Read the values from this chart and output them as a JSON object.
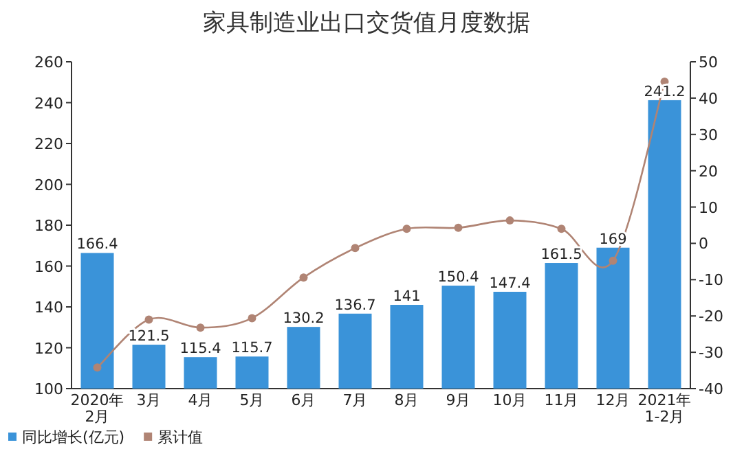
{
  "chart_data": {
    "type": "bar",
    "title": "家具制造业出口交货值月度数据",
    "categories": [
      "2020年\n2月",
      "3月",
      "4月",
      "5月",
      "6月",
      "7月",
      "8月",
      "9月",
      "10月",
      "11月",
      "12月",
      "2021年\n1-2月"
    ],
    "series": [
      {
        "name": "同比增长(亿元)",
        "color": "#3a93d9",
        "values": [
          166.4,
          121.5,
          115.4,
          115.7,
          130.2,
          136.7,
          141,
          150.4,
          147.4,
          161.5,
          169,
          241.2
        ],
        "value_labels": [
          "166.4",
          "121.5",
          "115.4",
          "115.7",
          "130.2",
          "136.7",
          "141",
          "150.4",
          "147.4",
          "161.5",
          "169",
          "241.2"
        ]
      },
      {
        "name": "累计值",
        "type": "line",
        "axis": "y2",
        "color": "#b08474",
        "marker": "circle",
        "line_style": "solid",
        "values": [
          -34.2,
          -21,
          -23.2,
          -20.6,
          -9.4,
          -1.3,
          4,
          4.3,
          6.3,
          4,
          -4.8,
          44.5
        ]
      }
    ],
    "ylim": [
      100,
      260
    ],
    "yticks": [
      100,
      120,
      140,
      160,
      180,
      200,
      220,
      240,
      260
    ],
    "y2lim": [
      -40,
      50
    ],
    "y2ticks": [
      -40,
      -30,
      -20,
      -10,
      0,
      10,
      20,
      30,
      40,
      50
    ],
    "grid": false,
    "legend": "bottom left"
  }
}
